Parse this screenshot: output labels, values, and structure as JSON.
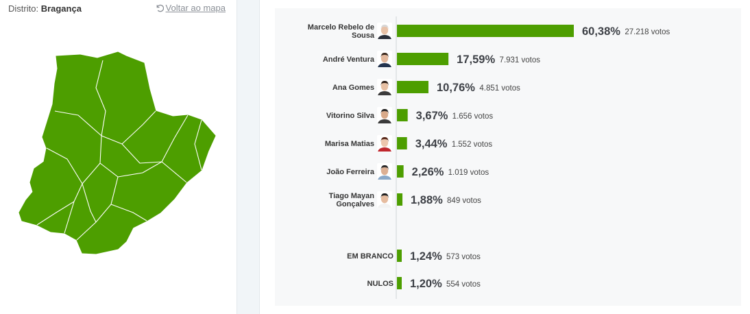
{
  "district": {
    "label": "Distrito:",
    "value": "Bragança"
  },
  "back_link": {
    "label": "Voltar ao mapa",
    "icon": "undo-icon"
  },
  "map": {
    "fill_color": "#4d9e00",
    "border_color": "#ffffff"
  },
  "chart_data": {
    "type": "bar",
    "orientation": "horizontal",
    "bar_color": "#4d9e00",
    "unit_label": "votos",
    "candidates": [
      {
        "name": "Marcelo Rebelo de Sousa",
        "lines": [
          "Marcelo Rebelo de",
          "Sousa"
        ],
        "pct": 60.38,
        "pct_label": "60,38%",
        "votes_label": "27.218",
        "avatar": {
          "skin": "#e8c2a8",
          "hair": "#d8d8d8",
          "shirt": "#2a2f3a"
        }
      },
      {
        "name": "André Ventura",
        "lines": [
          "André Ventura"
        ],
        "pct": 17.59,
        "pct_label": "17,59%",
        "votes_label": "7.931",
        "avatar": {
          "skin": "#e3b89c",
          "hair": "#3b2a20",
          "shirt": "#24344f"
        }
      },
      {
        "name": "Ana Gomes",
        "lines": [
          "Ana Gomes"
        ],
        "pct": 10.76,
        "pct_label": "10,76%",
        "votes_label": "4.851",
        "avatar": {
          "skin": "#e7c0a4",
          "hair": "#2a1d16",
          "shirt": "#3b3b3b"
        }
      },
      {
        "name": "Vitorino Silva",
        "lines": [
          "Vitorino Silva"
        ],
        "pct": 3.67,
        "pct_label": "3,67%",
        "votes_label": "1.656",
        "avatar": {
          "skin": "#d9aa8a",
          "hair": "#262626",
          "shirt": "#3a3a3a"
        }
      },
      {
        "name": "Marisa Matias",
        "lines": [
          "Marisa Matias"
        ],
        "pct": 3.44,
        "pct_label": "3,44%",
        "votes_label": "1.552",
        "avatar": {
          "skin": "#edc6ad",
          "hair": "#5a2c1e",
          "shirt": "#c0272d"
        }
      },
      {
        "name": "João Ferreira",
        "lines": [
          "João Ferreira"
        ],
        "pct": 2.26,
        "pct_label": "2,26%",
        "votes_label": "1.019",
        "avatar": {
          "skin": "#ddb093",
          "hair": "#2b2b2b",
          "shirt": "#8aa9c9"
        }
      },
      {
        "name": "Tiago Mayan Gonçalves",
        "lines": [
          "Tiago Mayan",
          "Gonçalves"
        ],
        "pct": 1.88,
        "pct_label": "1,88%",
        "votes_label": "849",
        "avatar": {
          "skin": "#e6bc9f",
          "hair": "#1f1f1f",
          "shirt": "#f2f2f2"
        }
      }
    ],
    "others": [
      {
        "name": "EM BRANCO",
        "pct": 1.24,
        "pct_label": "1,24%",
        "votes_label": "573"
      },
      {
        "name": "NULOS",
        "pct": 1.2,
        "pct_label": "1,20%",
        "votes_label": "554"
      }
    ]
  }
}
